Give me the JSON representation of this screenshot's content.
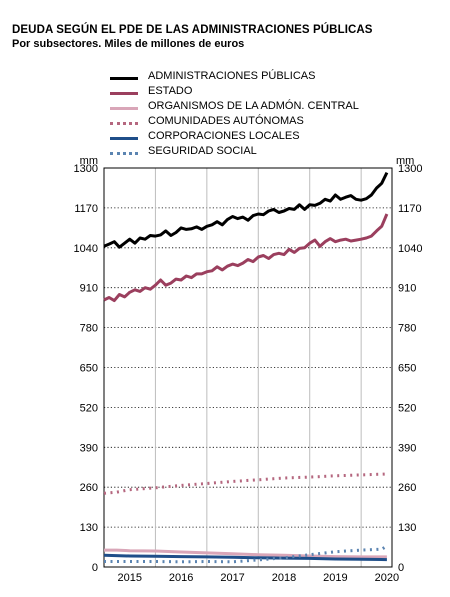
{
  "chart_data": {
    "type": "line",
    "title": "DEUDA SEGÚN EL PDE DE LAS ADMINISTRACIONES PÚBLICAS",
    "subtitle": "Por subsectores. Miles de millones de euros",
    "unit_left": "mm",
    "unit_right": "mm",
    "ylim": [
      0,
      1300
    ],
    "yticks": [
      0,
      130,
      260,
      390,
      520,
      650,
      780,
      910,
      1040,
      1170,
      1300
    ],
    "xlim": [
      2014.5,
      2020.1
    ],
    "xticks": [
      "2015",
      "2016",
      "2017",
      "2018",
      "2019",
      "2020"
    ],
    "legend_position": "top",
    "series": [
      {
        "name": "ADMINISTRACIONES PÚBLICAS",
        "color": "#000000",
        "style": "solid",
        "points": [
          [
            2014.5,
            1045
          ],
          [
            2014.6,
            1052
          ],
          [
            2014.7,
            1060
          ],
          [
            2014.8,
            1042
          ],
          [
            2014.9,
            1055
          ],
          [
            2015.0,
            1068
          ],
          [
            2015.1,
            1055
          ],
          [
            2015.2,
            1072
          ],
          [
            2015.3,
            1068
          ],
          [
            2015.4,
            1080
          ],
          [
            2015.5,
            1078
          ],
          [
            2015.6,
            1082
          ],
          [
            2015.7,
            1095
          ],
          [
            2015.8,
            1080
          ],
          [
            2015.9,
            1090
          ],
          [
            2016.0,
            1105
          ],
          [
            2016.1,
            1100
          ],
          [
            2016.2,
            1102
          ],
          [
            2016.3,
            1108
          ],
          [
            2016.4,
            1100
          ],
          [
            2016.5,
            1110
          ],
          [
            2016.6,
            1115
          ],
          [
            2016.7,
            1125
          ],
          [
            2016.8,
            1115
          ],
          [
            2016.9,
            1132
          ],
          [
            2017.0,
            1142
          ],
          [
            2017.1,
            1135
          ],
          [
            2017.2,
            1140
          ],
          [
            2017.3,
            1130
          ],
          [
            2017.4,
            1145
          ],
          [
            2017.5,
            1150
          ],
          [
            2017.6,
            1148
          ],
          [
            2017.7,
            1160
          ],
          [
            2017.8,
            1165
          ],
          [
            2017.9,
            1155
          ],
          [
            2018.0,
            1160
          ],
          [
            2018.1,
            1168
          ],
          [
            2018.2,
            1165
          ],
          [
            2018.3,
            1180
          ],
          [
            2018.4,
            1165
          ],
          [
            2018.5,
            1180
          ],
          [
            2018.6,
            1178
          ],
          [
            2018.7,
            1185
          ],
          [
            2018.8,
            1198
          ],
          [
            2018.9,
            1192
          ],
          [
            2019.0,
            1212
          ],
          [
            2019.1,
            1198
          ],
          [
            2019.2,
            1205
          ],
          [
            2019.3,
            1210
          ],
          [
            2019.4,
            1198
          ],
          [
            2019.5,
            1195
          ],
          [
            2019.6,
            1200
          ],
          [
            2019.7,
            1212
          ],
          [
            2019.8,
            1235
          ],
          [
            2019.9,
            1250
          ],
          [
            2020.0,
            1285
          ]
        ]
      },
      {
        "name": "ESTADO",
        "color": "#9b3f5e",
        "style": "solid",
        "points": [
          [
            2014.5,
            870
          ],
          [
            2014.6,
            878
          ],
          [
            2014.7,
            868
          ],
          [
            2014.8,
            888
          ],
          [
            2014.9,
            880
          ],
          [
            2015.0,
            895
          ],
          [
            2015.1,
            903
          ],
          [
            2015.2,
            898
          ],
          [
            2015.3,
            910
          ],
          [
            2015.4,
            905
          ],
          [
            2015.5,
            918
          ],
          [
            2015.6,
            935
          ],
          [
            2015.7,
            918
          ],
          [
            2015.8,
            925
          ],
          [
            2015.9,
            938
          ],
          [
            2016.0,
            935
          ],
          [
            2016.1,
            948
          ],
          [
            2016.2,
            943
          ],
          [
            2016.3,
            955
          ],
          [
            2016.4,
            955
          ],
          [
            2016.5,
            962
          ],
          [
            2016.6,
            965
          ],
          [
            2016.7,
            978
          ],
          [
            2016.8,
            968
          ],
          [
            2016.9,
            980
          ],
          [
            2017.0,
            987
          ],
          [
            2017.1,
            982
          ],
          [
            2017.2,
            990
          ],
          [
            2017.3,
            1002
          ],
          [
            2017.4,
            995
          ],
          [
            2017.5,
            1010
          ],
          [
            2017.6,
            1015
          ],
          [
            2017.7,
            1005
          ],
          [
            2017.8,
            1018
          ],
          [
            2017.9,
            1022
          ],
          [
            2018.0,
            1018
          ],
          [
            2018.1,
            1035
          ],
          [
            2018.2,
            1025
          ],
          [
            2018.3,
            1038
          ],
          [
            2018.4,
            1040
          ],
          [
            2018.5,
            1055
          ],
          [
            2018.6,
            1065
          ],
          [
            2018.7,
            1045
          ],
          [
            2018.8,
            1060
          ],
          [
            2018.9,
            1070
          ],
          [
            2019.0,
            1060
          ],
          [
            2019.1,
            1065
          ],
          [
            2019.2,
            1068
          ],
          [
            2019.3,
            1062
          ],
          [
            2019.4,
            1065
          ],
          [
            2019.5,
            1068
          ],
          [
            2019.6,
            1072
          ],
          [
            2019.7,
            1078
          ],
          [
            2019.8,
            1095
          ],
          [
            2019.9,
            1110
          ],
          [
            2020.0,
            1150
          ]
        ]
      },
      {
        "name": "ORGANISMOS DE LA ADMÓN. CENTRAL",
        "color": "#d9a6b8",
        "style": "solid",
        "points": [
          [
            2014.5,
            55
          ],
          [
            2014.75,
            55
          ],
          [
            2015.0,
            53
          ],
          [
            2015.5,
            52
          ],
          [
            2016.0,
            49
          ],
          [
            2016.5,
            46
          ],
          [
            2017.0,
            43
          ],
          [
            2017.5,
            40
          ],
          [
            2018.0,
            38
          ],
          [
            2018.5,
            36
          ],
          [
            2019.0,
            34
          ],
          [
            2019.5,
            33
          ],
          [
            2020.0,
            33
          ]
        ]
      },
      {
        "name": "COMUNIDADES AUTÓNOMAS",
        "color": "#b5677f",
        "style": "dotted",
        "points": [
          [
            2014.5,
            240
          ],
          [
            2014.75,
            244
          ],
          [
            2015.0,
            252
          ],
          [
            2015.5,
            258
          ],
          [
            2016.0,
            266
          ],
          [
            2016.5,
            272
          ],
          [
            2017.0,
            279
          ],
          [
            2017.5,
            284
          ],
          [
            2018.0,
            290
          ],
          [
            2018.5,
            293
          ],
          [
            2019.0,
            297
          ],
          [
            2019.5,
            300
          ],
          [
            2020.0,
            303
          ]
        ]
      },
      {
        "name": "CORPORACIONES LOCALES",
        "color": "#1f4e89",
        "style": "solid",
        "points": [
          [
            2014.5,
            38
          ],
          [
            2015.0,
            36
          ],
          [
            2015.5,
            35
          ],
          [
            2016.0,
            34
          ],
          [
            2016.5,
            33
          ],
          [
            2017.0,
            32
          ],
          [
            2017.5,
            30
          ],
          [
            2018.0,
            29
          ],
          [
            2018.5,
            28
          ],
          [
            2019.0,
            26
          ],
          [
            2019.5,
            25
          ],
          [
            2020.0,
            24
          ]
        ]
      },
      {
        "name": "SEGURIDAD SOCIAL",
        "color": "#5b84b1",
        "style": "dotted",
        "points": [
          [
            2014.5,
            18
          ],
          [
            2015.0,
            18
          ],
          [
            2015.5,
            18
          ],
          [
            2016.0,
            17
          ],
          [
            2016.5,
            18
          ],
          [
            2017.0,
            17
          ],
          [
            2017.5,
            23
          ],
          [
            2018.0,
            30
          ],
          [
            2018.5,
            40
          ],
          [
            2019.0,
            50
          ],
          [
            2019.5,
            55
          ],
          [
            2019.9,
            58
          ],
          [
            2020.0,
            68
          ]
        ]
      }
    ]
  }
}
